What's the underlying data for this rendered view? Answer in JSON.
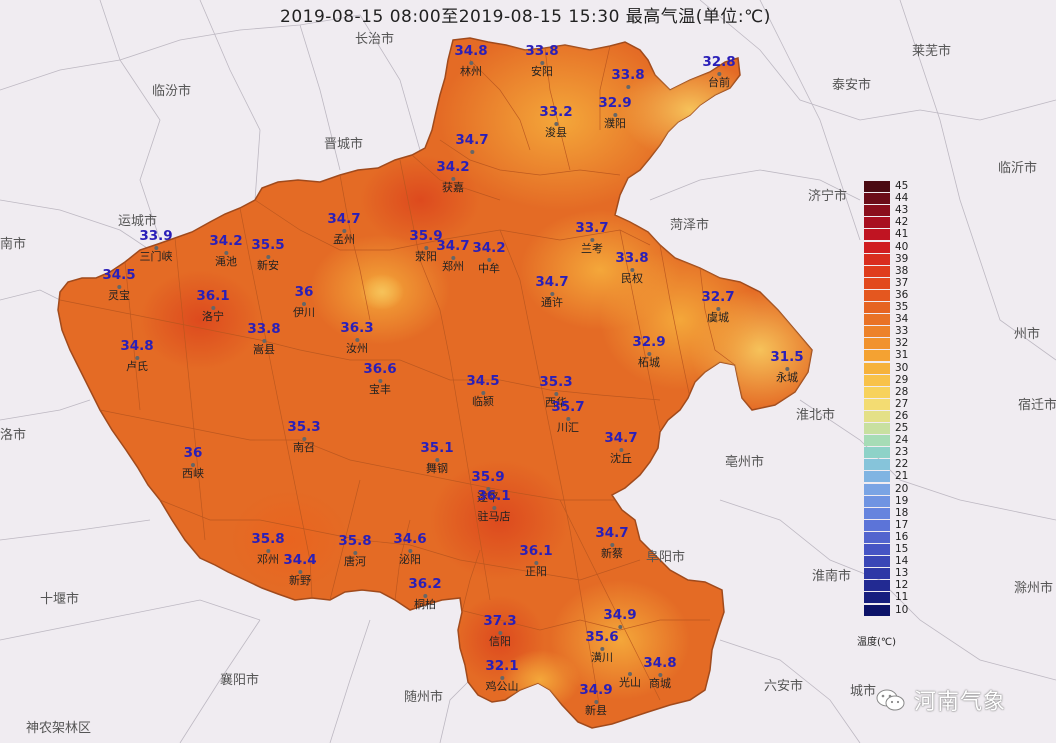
{
  "title": "2019-08-15 08:00至2019-08-15 15:30 最高气温(单位:℃)",
  "legend": {
    "title": "温度(℃)",
    "ticks": [
      "45",
      "44",
      "43",
      "42",
      "41",
      "40",
      "39",
      "38",
      "37",
      "36",
      "35",
      "34",
      "33",
      "32",
      "31",
      "30",
      "29",
      "28",
      "27",
      "26",
      "25",
      "24",
      "23",
      "22",
      "21",
      "20",
      "19",
      "18",
      "17",
      "16",
      "15",
      "14",
      "13",
      "12",
      "11",
      "10"
    ],
    "colors": [
      "#4a0a12",
      "#6b0c18",
      "#8a0e1c",
      "#a80f20",
      "#c01422",
      "#d01d20",
      "#d92d1e",
      "#df3c1c",
      "#e2491d",
      "#e4571f",
      "#e66422",
      "#e97226",
      "#ed822a",
      "#f1922d",
      "#f4a232",
      "#f6b23b",
      "#f8c24a",
      "#f7d25c",
      "#f3dc72",
      "#e4e087",
      "#c8e0a0",
      "#a6dcb6",
      "#8ed2c8",
      "#86c4da",
      "#80b4e2",
      "#7aa4e4",
      "#7094e2",
      "#6684de",
      "#5c74d8",
      "#5264ce",
      "#4654c4",
      "#3a46b6",
      "#2e38a6",
      "#222a92",
      "#161e7e",
      "#0c1268"
    ]
  },
  "neighbors": [
    {
      "label": "长治市"
    },
    {
      "label": "临汾市"
    },
    {
      "label": "晋城市"
    },
    {
      "label": "运城市"
    },
    {
      "label": "南市"
    },
    {
      "label": "莱芜市"
    },
    {
      "label": "泰安市"
    },
    {
      "label": "济宁市"
    },
    {
      "label": "菏泽市"
    },
    {
      "label": "临沂市"
    },
    {
      "label": "州市"
    },
    {
      "label": "淮北市"
    },
    {
      "label": "宿迁市"
    },
    {
      "label": "亳州市"
    },
    {
      "label": "阜阳市"
    },
    {
      "label": "淮南市"
    },
    {
      "label": "滁州市"
    },
    {
      "label": "六安市"
    },
    {
      "label": "十堰市"
    },
    {
      "label": "襄阳市"
    },
    {
      "label": "随州市"
    },
    {
      "label": "神农架林区"
    },
    {
      "label": "洛市"
    },
    {
      "label": "城市"
    }
  ],
  "stations": [
    {
      "value": "34.8",
      "name": "林州"
    },
    {
      "value": "33.8",
      "name": "安阳"
    },
    {
      "value": "33.8",
      "name": ""
    },
    {
      "value": "32.8",
      "name": "台前"
    },
    {
      "value": "33.2",
      "name": "浚县"
    },
    {
      "value": "32.9",
      "name": "濮阳"
    },
    {
      "value": "34.7",
      "name": ""
    },
    {
      "value": "34.2",
      "name": "获嘉"
    },
    {
      "value": "33.9",
      "name": "三门峡"
    },
    {
      "value": "34.2",
      "name": "渑池"
    },
    {
      "value": "35.5",
      "name": "新安"
    },
    {
      "value": "34.7",
      "name": "孟州"
    },
    {
      "value": "35.9",
      "name": "荥阳"
    },
    {
      "value": "34.7",
      "name": "郑州"
    },
    {
      "value": "34.2",
      "name": "中牟"
    },
    {
      "value": "33.7",
      "name": "兰考"
    },
    {
      "value": "33.8",
      "name": "民权"
    },
    {
      "value": "34.5",
      "name": "灵宝"
    },
    {
      "value": "36.1",
      "name": "洛宁"
    },
    {
      "value": "36",
      "name": "伊川"
    },
    {
      "value": "33.8",
      "name": "嵩县"
    },
    {
      "value": "36.3",
      "name": "汝州"
    },
    {
      "value": "36.6",
      "name": "宝丰"
    },
    {
      "value": "34.7",
      "name": "通许"
    },
    {
      "value": "32.7",
      "name": "虞城"
    },
    {
      "value": "32.9",
      "name": "柘城"
    },
    {
      "value": "31.5",
      "name": "永城"
    },
    {
      "value": "34.8",
      "name": "卢氏"
    },
    {
      "value": "34.5",
      "name": "临颍"
    },
    {
      "value": "35.3",
      "name": "西华"
    },
    {
      "value": "35.7",
      "name": "川汇"
    },
    {
      "value": "35.3",
      "name": "南召"
    },
    {
      "value": "34.7",
      "name": "沈丘"
    },
    {
      "value": "36",
      "name": "西峡"
    },
    {
      "value": "35.1",
      "name": "舞钢"
    },
    {
      "value": "35.9",
      "name": "遂平"
    },
    {
      "value": "36.1",
      "name": "驻马店"
    },
    {
      "value": "35.8",
      "name": "邓州"
    },
    {
      "value": "34.4",
      "name": "新野"
    },
    {
      "value": "35.8",
      "name": "唐河"
    },
    {
      "value": "34.6",
      "name": "泌阳"
    },
    {
      "value": "34.7",
      "name": "新蔡"
    },
    {
      "value": "36.1",
      "name": "正阳"
    },
    {
      "value": "36.2",
      "name": "桐柏"
    },
    {
      "value": "37.3",
      "name": "信阳"
    },
    {
      "value": "34.9",
      "name": ""
    },
    {
      "value": "35.6",
      "name": "潢川"
    },
    {
      "value": "32.1",
      "name": "鸡公山"
    },
    {
      "value": "34.8",
      "name": "商城"
    },
    {
      "value": "34.9",
      "name": "新县"
    },
    {
      "value": "",
      "name": "光山"
    }
  ],
  "watermark": {
    "text": "河南气象",
    "icon": "wechat-icon"
  }
}
